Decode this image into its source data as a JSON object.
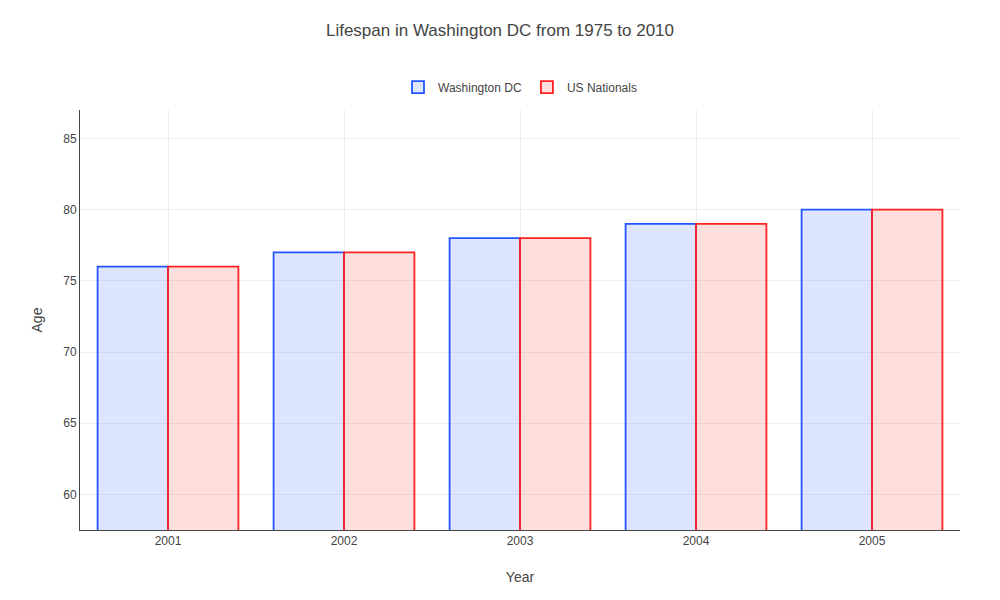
{
  "chart_data": {
    "type": "bar",
    "title": "Lifespan in Washington DC from 1975 to 2010",
    "x_label": "Year",
    "y_label": "Age",
    "categories": [
      "2001",
      "2002",
      "2003",
      "2004",
      "2005"
    ],
    "series": [
      {
        "name": "Washington DC",
        "color": "#2255ff",
        "values": [
          76,
          77,
          78,
          79,
          80
        ]
      },
      {
        "name": "US Nationals",
        "color": "#ff2222",
        "values": [
          76,
          77,
          78,
          79,
          80
        ]
      }
    ],
    "ylim": [
      57.5,
      87
    ],
    "yticks": [
      60,
      65,
      70,
      75,
      80,
      85
    ],
    "grid": true,
    "legend": "top"
  }
}
